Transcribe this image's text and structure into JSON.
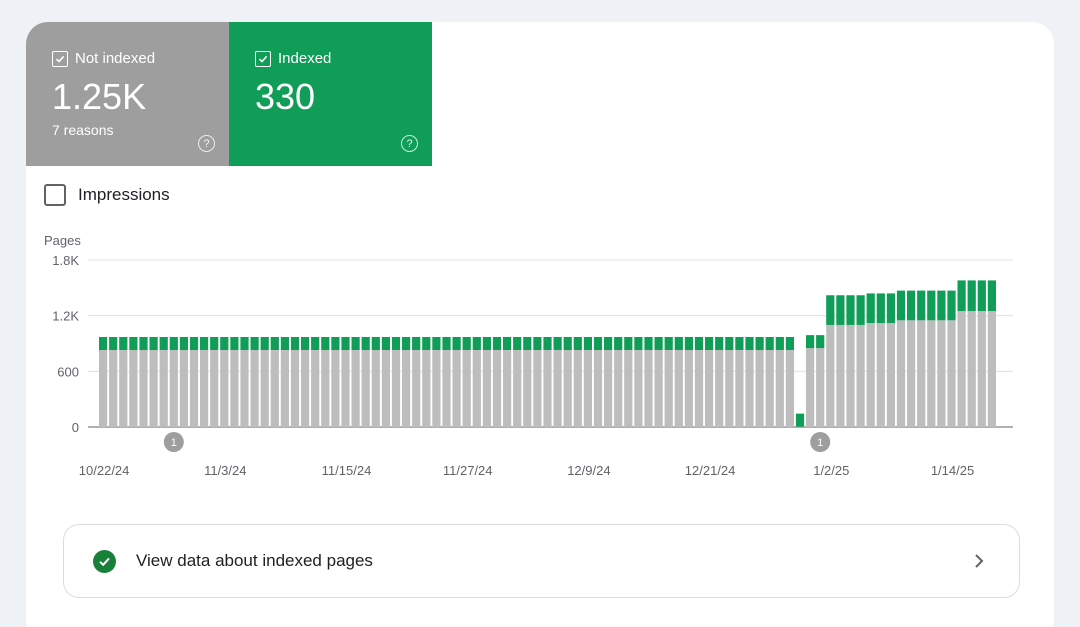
{
  "summary": {
    "not_indexed": {
      "label": "Not indexed",
      "count": "1.25K",
      "sub": "7 reasons",
      "color": "#9e9e9e"
    },
    "indexed": {
      "label": "Indexed",
      "count": "330",
      "color": "#0f9d58"
    }
  },
  "impressions": {
    "label": "Impressions",
    "checked": false
  },
  "chart_data": {
    "type": "bar",
    "stacked": true,
    "ylabel": "Pages",
    "ylim": [
      0,
      1800
    ],
    "yticks": [
      "0",
      "600",
      "1.2K",
      "1.8K"
    ],
    "ytick_values": [
      0,
      600,
      1200,
      1800
    ],
    "xtick_labels": [
      "10/22/24",
      "11/3/24",
      "11/15/24",
      "11/27/24",
      "12/9/24",
      "12/21/24",
      "1/2/25",
      "1/14/25"
    ],
    "xtick_indices": [
      0,
      12,
      24,
      36,
      48,
      60,
      72,
      84
    ],
    "grid": true,
    "annotations": [
      {
        "index": 7,
        "text": "1"
      },
      {
        "index": 71,
        "text": "1"
      }
    ],
    "series": [
      {
        "name": "Not indexed",
        "color": "#bdbdbd",
        "values": [
          830,
          830,
          830,
          830,
          830,
          830,
          830,
          830,
          830,
          830,
          830,
          830,
          830,
          830,
          830,
          830,
          830,
          830,
          830,
          830,
          830,
          830,
          830,
          830,
          830,
          830,
          830,
          830,
          830,
          830,
          830,
          830,
          830,
          830,
          830,
          830,
          830,
          830,
          830,
          830,
          830,
          830,
          830,
          830,
          830,
          830,
          830,
          830,
          830,
          830,
          830,
          830,
          830,
          830,
          830,
          830,
          830,
          830,
          830,
          830,
          830,
          830,
          830,
          830,
          830,
          830,
          830,
          830,
          830,
          4,
          850,
          850,
          1100,
          1100,
          1100,
          1100,
          1120,
          1120,
          1120,
          1150,
          1150,
          1150,
          1150,
          1150,
          1150,
          1250,
          1250,
          1250,
          1250
        ]
      },
      {
        "name": "Indexed",
        "color": "#0f9d58",
        "values": [
          140,
          140,
          140,
          140,
          140,
          140,
          140,
          140,
          140,
          140,
          140,
          140,
          140,
          140,
          140,
          140,
          140,
          140,
          140,
          140,
          140,
          140,
          140,
          140,
          140,
          140,
          140,
          140,
          140,
          140,
          140,
          140,
          140,
          140,
          140,
          140,
          140,
          140,
          140,
          140,
          140,
          140,
          140,
          140,
          140,
          140,
          140,
          140,
          140,
          140,
          140,
          140,
          140,
          140,
          140,
          140,
          140,
          140,
          140,
          140,
          140,
          140,
          140,
          140,
          140,
          140,
          140,
          140,
          140,
          140,
          140,
          140,
          320,
          320,
          320,
          320,
          320,
          320,
          320,
          320,
          320,
          320,
          320,
          320,
          320,
          330,
          330,
          330,
          330
        ]
      }
    ]
  },
  "view_link": {
    "label": "View data about indexed pages"
  }
}
